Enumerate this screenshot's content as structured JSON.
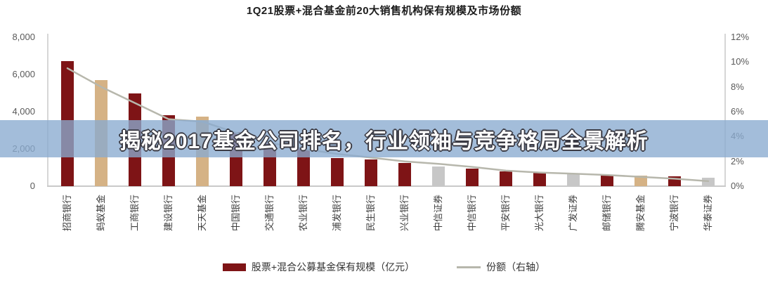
{
  "title": "1Q21股票+混合基金前20大销售机构保有规模及市场份额",
  "overlay_banner": {
    "headline": "揭秘2017基金公司排名，行业领袖与竞争格局全景解析",
    "background_color": "#89abcf",
    "text_color": "#ffffff"
  },
  "legend": {
    "items": [
      {
        "label": "股票+混合公募基金保有规模（亿元）",
        "type": "bar",
        "color": "#7e1416"
      },
      {
        "label": "份额（右轴）",
        "type": "line",
        "color": "#b7b7ac"
      }
    ]
  },
  "colors": {
    "bank": "#7e1416",
    "third_party": "#d5b285",
    "broker": "#c7c7c7",
    "line": "#b7b7ac"
  },
  "chart_data": {
    "type": "bar+line",
    "title": "1Q21股票+混合基金前20大销售机构保有规模及市场份额",
    "categories": [
      "招商银行",
      "蚂蚁基金",
      "工商银行",
      "建设银行",
      "天天基金",
      "中国银行",
      "交通银行",
      "农业银行",
      "浦发银行",
      "民生银行",
      "兴业银行",
      "中信证券",
      "中信银行",
      "平安银行",
      "光大银行",
      "广发证券",
      "邮储银行",
      "腾安基金",
      "宁波银行",
      "华泰证券"
    ],
    "bar_types": [
      "bank",
      "third_party",
      "bank",
      "bank",
      "third_party",
      "bank",
      "bank",
      "bank",
      "bank",
      "bank",
      "bank",
      "broker",
      "bank",
      "bank",
      "bank",
      "broker",
      "bank",
      "third_party",
      "bank",
      "broker"
    ],
    "series": [
      {
        "name": "股票+混合公募基金保有规模（亿元）",
        "type": "bar",
        "axis": "left",
        "values": [
          6700,
          5700,
          5000,
          3800,
          3750,
          2900,
          2300,
          2000,
          1510,
          1450,
          1260,
          1070,
          940,
          810,
          720,
          660,
          620,
          570,
          530,
          460
        ]
      },
      {
        "name": "份额（右轴）",
        "type": "line",
        "axis": "right",
        "values": [
          9.5,
          8.0,
          6.7,
          5.4,
          5.2,
          4.3,
          3.5,
          3.0,
          2.6,
          2.3,
          2.0,
          1.8,
          1.55,
          1.25,
          1.1,
          1.0,
          0.9,
          0.75,
          0.6,
          0.4
        ]
      }
    ],
    "left_axis": {
      "min": 0,
      "max": 8000,
      "tick_labels": [
        "0",
        "2,000",
        "4,000",
        "6,000",
        "8,000"
      ]
    },
    "right_axis": {
      "min": 0,
      "max": 12,
      "tick_labels": [
        "0%",
        "2%",
        "4%",
        "6%",
        "8%",
        "10%",
        "12%"
      ]
    },
    "grid": false,
    "legend_position": "bottom"
  }
}
